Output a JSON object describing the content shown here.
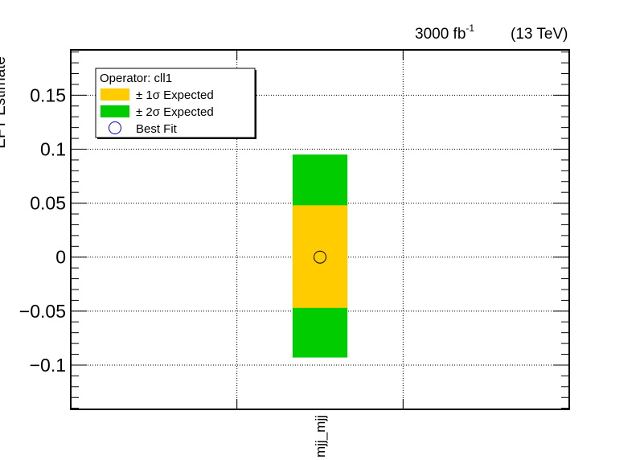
{
  "header": {
    "lumi_value": "3000 fb",
    "lumi_exponent": "-1",
    "energy": "(13 TeV)"
  },
  "axis": {
    "ylabel": "EFT Estimate",
    "ytick_labels": [
      "0.15",
      "0.1",
      "0.05",
      "0",
      "−0.05",
      "−0.1"
    ]
  },
  "legend": {
    "title": "Operator: cll1",
    "items": [
      {
        "label": "± 1σ Expected",
        "color": "#ffcc00",
        "kind": "box"
      },
      {
        "label": "± 2σ Expected",
        "color": "#00cc00",
        "kind": "box"
      },
      {
        "label": "Best Fit",
        "color": "#0000cc",
        "kind": "circle"
      }
    ]
  },
  "chart_data": {
    "type": "bar",
    "categories": [
      "mjj_mjj"
    ],
    "series": [
      {
        "name": "± 2σ Expected",
        "low": [
          -0.093
        ],
        "high": [
          0.095
        ],
        "color": "#00cc00"
      },
      {
        "name": "± 1σ Expected",
        "low": [
          -0.047
        ],
        "high": [
          0.048
        ],
        "color": "#ffcc00"
      },
      {
        "name": "Best Fit",
        "values": [
          0.0
        ],
        "color": "#0000cc"
      }
    ],
    "ylim": [
      -0.141,
      0.192
    ],
    "xlim": [
      0,
      3
    ],
    "category_index": [
      1.5
    ],
    "yticks": [
      0.15,
      0.1,
      0.05,
      0,
      -0.05,
      -0.1
    ],
    "xgrid": [
      1,
      2
    ],
    "grid": true,
    "legend_position": "top-left"
  }
}
